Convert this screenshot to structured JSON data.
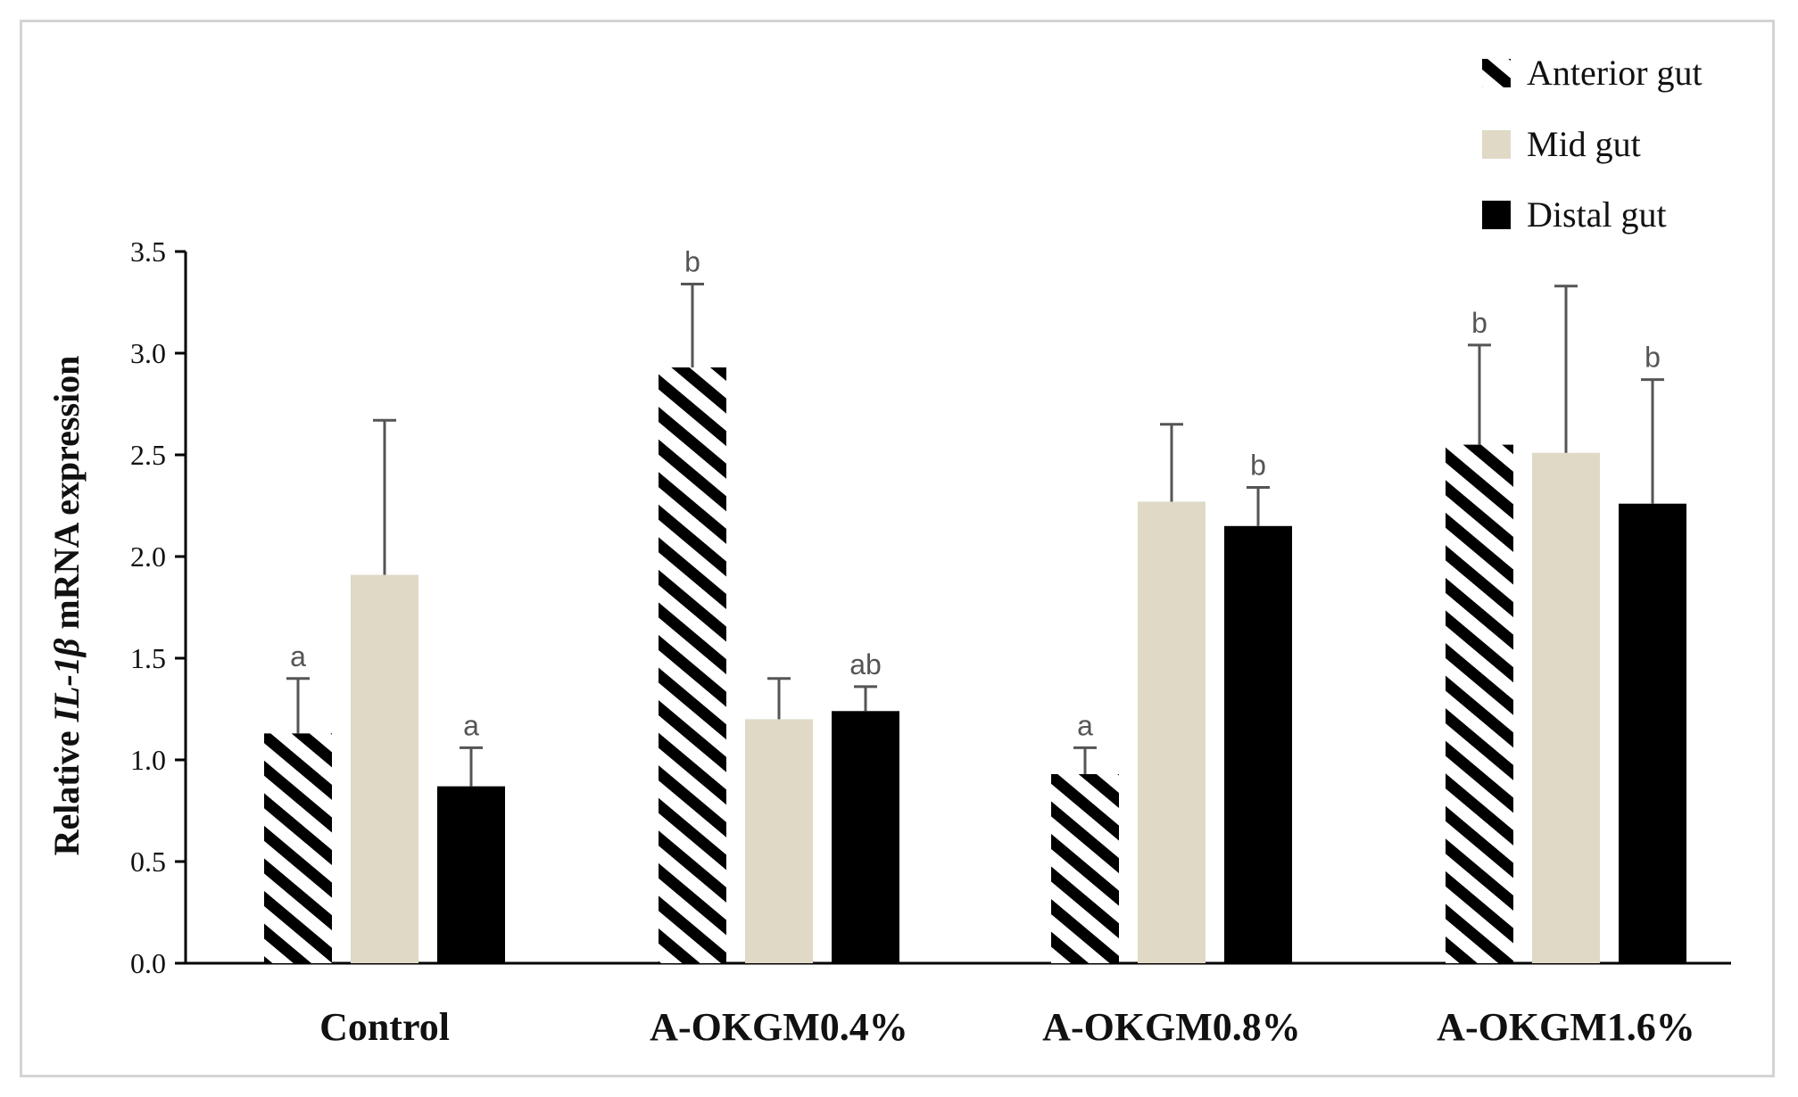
{
  "chart_data": {
    "type": "bar",
    "title": "",
    "xlabel": "",
    "ylabel": {
      "prefix": "Relative ",
      "gene": "IL-1β",
      "suffix": " mRNA expression"
    },
    "ylim": [
      0,
      3.5
    ],
    "yticks": [
      "0.0",
      "0.5",
      "1.0",
      "1.5",
      "2.0",
      "2.5",
      "3.0",
      "3.5"
    ],
    "categories": [
      "Control",
      "A-OKGM0.4%",
      "A-OKGM0.8%",
      "A-OKGM1.6%"
    ],
    "legend_position": "top-right",
    "series": [
      {
        "name": "Anterior gut",
        "pattern": "hatched",
        "color": "#000000",
        "values": [
          1.13,
          2.93,
          0.93,
          2.55
        ],
        "errors": [
          0.27,
          0.41,
          0.13,
          0.49
        ],
        "significance": [
          "a",
          "b",
          "a",
          "b"
        ]
      },
      {
        "name": "Mid gut",
        "pattern": "solid",
        "color": "#dfd9c6",
        "values": [
          1.91,
          1.2,
          2.27,
          2.51
        ],
        "errors": [
          0.76,
          0.2,
          0.38,
          0.82
        ],
        "significance": [
          "",
          "",
          "",
          ""
        ]
      },
      {
        "name": "Distal gut",
        "pattern": "solid",
        "color": "#000000",
        "values": [
          0.87,
          1.24,
          2.15,
          2.26
        ],
        "errors": [
          0.19,
          0.12,
          0.19,
          0.61
        ],
        "significance": [
          "a",
          "ab",
          "b",
          "b"
        ]
      }
    ]
  },
  "colors": {
    "axis": "#000000",
    "error_bar": "#555555",
    "frame": "#d4d4d4"
  }
}
